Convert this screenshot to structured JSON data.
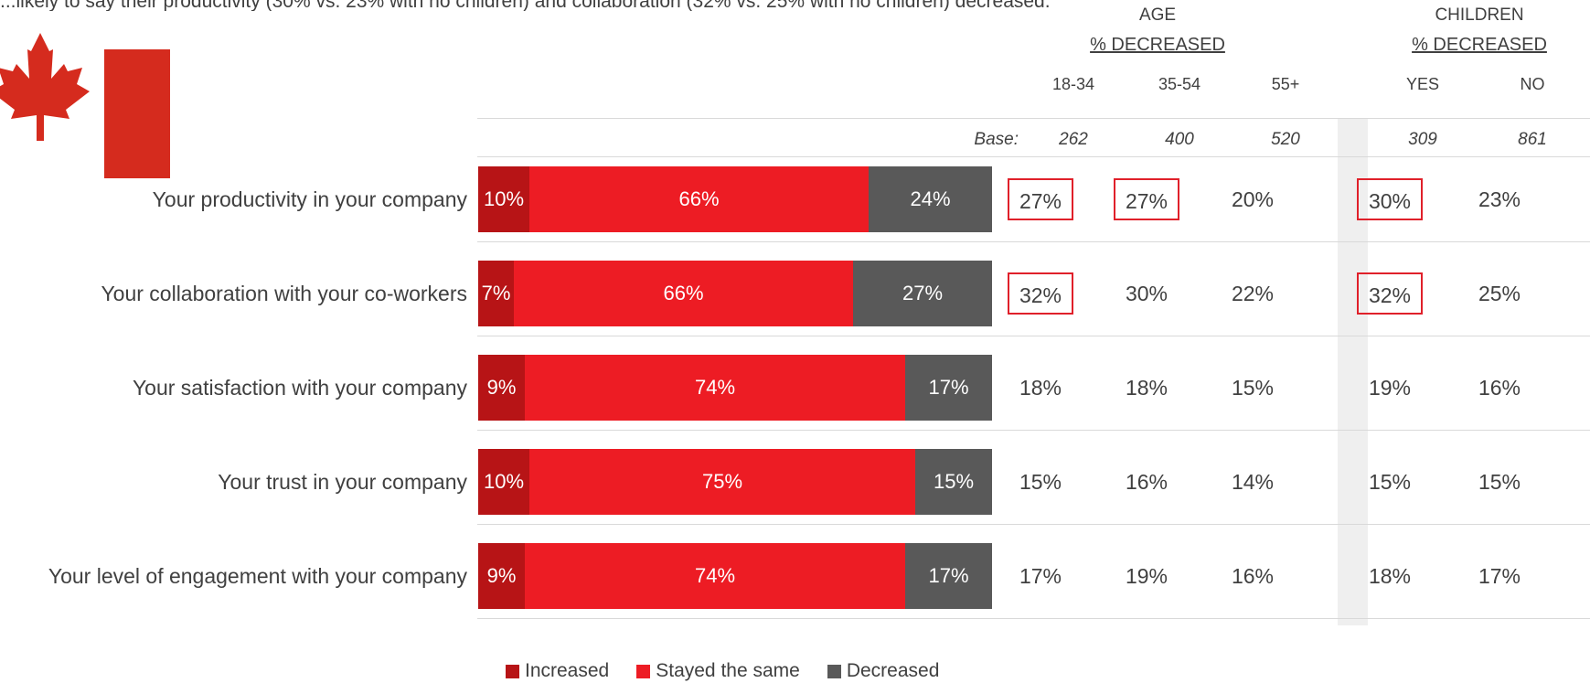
{
  "intro_text": "...likely to say their productivity (30% vs. 23% with no children) and collaboration (32% vs. 25% with no children) decreased.",
  "colors": {
    "increased": "#B71416",
    "same": "#ED1C24",
    "decreased": "#595959",
    "highlight": "#E0202A",
    "flag_red": "#D52B1E"
  },
  "header": {
    "age_title": "AGE",
    "age_sub": "% DECREASED",
    "children_title": "CHILDREN",
    "children_sub": "% DECREASED",
    "columns": [
      "18-34",
      "35-54",
      "55+",
      "YES",
      "NO"
    ],
    "base_label": "Base:",
    "bases": [
      "262",
      "400",
      "520",
      "309",
      "861"
    ]
  },
  "legend": [
    "Increased",
    "Stayed the same",
    "Decreased"
  ],
  "chart_data": {
    "type": "bar",
    "orientation": "horizontal-stacked-100",
    "categories": [
      "Your productivity in your company",
      "Your collaboration with your co-workers",
      "Your satisfaction with your company",
      "Your trust in your company",
      "Your level of engagement with your company"
    ],
    "series": [
      {
        "name": "Increased",
        "values": [
          10,
          7,
          9,
          10,
          9
        ],
        "labels": [
          "10%",
          "7%",
          "9%",
          "10%",
          "9%"
        ]
      },
      {
        "name": "Stayed the same",
        "values": [
          66,
          66,
          74,
          75,
          74
        ],
        "labels": [
          "66%",
          "66%",
          "74%",
          "75%",
          "74%"
        ]
      },
      {
        "name": "Decreased",
        "values": [
          24,
          27,
          17,
          15,
          17
        ],
        "labels": [
          "24%",
          "27%",
          "17%",
          "15%",
          "17%"
        ]
      }
    ],
    "legend_position": "bottom"
  },
  "table": {
    "rows": [
      [
        "27%",
        "27%",
        "20%",
        "30%",
        "23%"
      ],
      [
        "32%",
        "30%",
        "22%",
        "32%",
        "25%"
      ],
      [
        "18%",
        "18%",
        "15%",
        "19%",
        "16%"
      ],
      [
        "15%",
        "16%",
        "14%",
        "15%",
        "15%"
      ],
      [
        "17%",
        "19%",
        "16%",
        "18%",
        "17%"
      ]
    ],
    "highlighted": [
      [
        true,
        true,
        false,
        true,
        false
      ],
      [
        true,
        false,
        false,
        true,
        false
      ],
      [
        false,
        false,
        false,
        false,
        false
      ],
      [
        false,
        false,
        false,
        false,
        false
      ],
      [
        false,
        false,
        false,
        false,
        false
      ]
    ]
  }
}
